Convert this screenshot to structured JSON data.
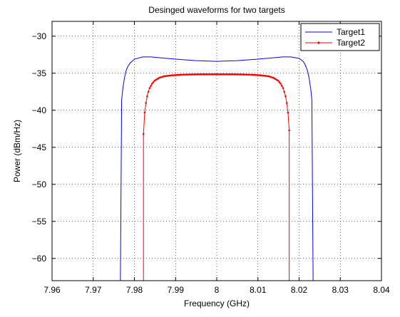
{
  "chart_data": {
    "type": "line",
    "title": "Desinged waveforms for two targets",
    "xlabel": "Frequency (GHz)",
    "ylabel": "Power (dBm/Hz)",
    "xlim": [
      7.96,
      8.04
    ],
    "ylim": [
      -63,
      -28
    ],
    "xticks": [
      7.96,
      7.97,
      7.98,
      7.99,
      8.0,
      8.01,
      8.02,
      8.03,
      8.04
    ],
    "xtick_labels": [
      "7.96",
      "7.97",
      "7.98",
      "7.99",
      "8",
      "8.01",
      "8.02",
      "8.03",
      "8.04"
    ],
    "yticks": [
      -60,
      -55,
      -50,
      -45,
      -40,
      -35,
      -30
    ],
    "ytick_labels": [
      "−60",
      "−55",
      "−50",
      "−45",
      "−40",
      "−35",
      "−30"
    ],
    "grid": true,
    "legend_position": "top-right",
    "series": [
      {
        "name": "Target1",
        "color": "#0000ff",
        "marker": "none",
        "x": [
          7.9766,
          7.9769,
          7.9772,
          7.9776,
          7.978,
          7.9785,
          7.979,
          7.98,
          7.982,
          7.984,
          7.986,
          7.99,
          7.995,
          8.0,
          8.005,
          8.01,
          8.014,
          8.016,
          8.018,
          8.02,
          8.021,
          8.0215,
          8.022,
          8.0224,
          8.0228,
          8.0231,
          8.0234
        ],
        "y": [
          -63,
          -38.6,
          -37.0,
          -35.6,
          -34.6,
          -34.0,
          -33.6,
          -33.1,
          -32.8,
          -32.8,
          -32.9,
          -33.1,
          -33.3,
          -33.4,
          -33.3,
          -33.1,
          -32.9,
          -32.8,
          -32.8,
          -33.0,
          -33.4,
          -33.9,
          -34.6,
          -35.6,
          -37.0,
          -38.6,
          -63
        ]
      },
      {
        "name": "Target2",
        "color": "#ff0000",
        "marker": "dot",
        "x": [
          7.9822,
          7.9822,
          7.9825,
          7.9828,
          7.9831,
          7.9834,
          7.9837,
          7.984,
          7.9843,
          7.9846,
          7.9849,
          7.9852,
          7.9855,
          7.9858,
          7.9861,
          7.9864,
          7.9867,
          7.987,
          7.9873,
          7.9876,
          7.9879,
          7.9882,
          7.9885,
          7.9888,
          7.9891,
          7.9894,
          7.9897,
          7.99,
          7.9903,
          7.9906,
          7.9909,
          7.9912,
          7.9915,
          7.9918,
          7.9921,
          7.9924,
          7.9927,
          7.993,
          7.9933,
          7.9936,
          7.9939,
          7.9942,
          7.9945,
          7.9948,
          7.9951,
          7.9954,
          7.9957,
          7.996,
          7.9963,
          7.9966,
          7.9969,
          7.9972,
          7.9975,
          7.9978,
          7.9981,
          7.9984,
          7.9987,
          7.999,
          7.9993,
          7.9996,
          7.9999,
          8.0002,
          8.0005,
          8.0008,
          8.0011,
          8.0014,
          8.0017,
          8.002,
          8.0023,
          8.0026,
          8.0029,
          8.0032,
          8.0035,
          8.0038,
          8.0041,
          8.0044,
          8.0047,
          8.005,
          8.0053,
          8.0056,
          8.0059,
          8.0062,
          8.0065,
          8.0068,
          8.0071,
          8.0074,
          8.0077,
          8.008,
          8.0083,
          8.0086,
          8.0089,
          8.0092,
          8.0095,
          8.0098,
          8.0101,
          8.0104,
          8.0107,
          8.011,
          8.0113,
          8.0116,
          8.0119,
          8.0122,
          8.0125,
          8.0128,
          8.0131,
          8.0134,
          8.0137,
          8.014,
          8.0143,
          8.0146,
          8.0149,
          8.0152,
          8.0155,
          8.0158,
          8.0161,
          8.0164,
          8.0167,
          8.017,
          8.0173,
          8.0176,
          8.0176
        ],
        "y": [
          -63,
          -43.2,
          -40.3,
          -39.0,
          -38.1,
          -37.5,
          -37.0,
          -36.7,
          -36.4,
          -36.2,
          -36.0,
          -35.9,
          -35.8,
          -35.7,
          -35.6,
          -35.55,
          -35.5,
          -35.45,
          -35.4,
          -35.38,
          -35.36,
          -35.34,
          -35.32,
          -35.3,
          -35.28,
          -35.27,
          -35.26,
          -35.25,
          -35.24,
          -35.23,
          -35.22,
          -35.21,
          -35.2,
          -35.2,
          -35.19,
          -35.19,
          -35.18,
          -35.18,
          -35.17,
          -35.17,
          -35.17,
          -35.16,
          -35.16,
          -35.16,
          -35.16,
          -35.15,
          -35.15,
          -35.15,
          -35.15,
          -35.15,
          -35.15,
          -35.15,
          -35.15,
          -35.15,
          -35.15,
          -35.15,
          -35.15,
          -35.15,
          -35.15,
          -35.15,
          -35.15,
          -35.15,
          -35.15,
          -35.15,
          -35.15,
          -35.15,
          -35.15,
          -35.15,
          -35.15,
          -35.15,
          -35.15,
          -35.15,
          -35.15,
          -35.15,
          -35.15,
          -35.15,
          -35.16,
          -35.16,
          -35.16,
          -35.16,
          -35.17,
          -35.17,
          -35.17,
          -35.18,
          -35.18,
          -35.19,
          -35.19,
          -35.2,
          -35.2,
          -35.21,
          -35.22,
          -35.23,
          -35.24,
          -35.25,
          -35.26,
          -35.27,
          -35.28,
          -35.3,
          -35.32,
          -35.34,
          -35.36,
          -35.38,
          -35.4,
          -35.45,
          -35.5,
          -35.55,
          -35.6,
          -35.7,
          -35.8,
          -35.9,
          -36.0,
          -36.2,
          -36.4,
          -36.7,
          -37.0,
          -37.5,
          -38.1,
          -39.0,
          -40.3,
          -42.7,
          -63
        ]
      }
    ]
  }
}
